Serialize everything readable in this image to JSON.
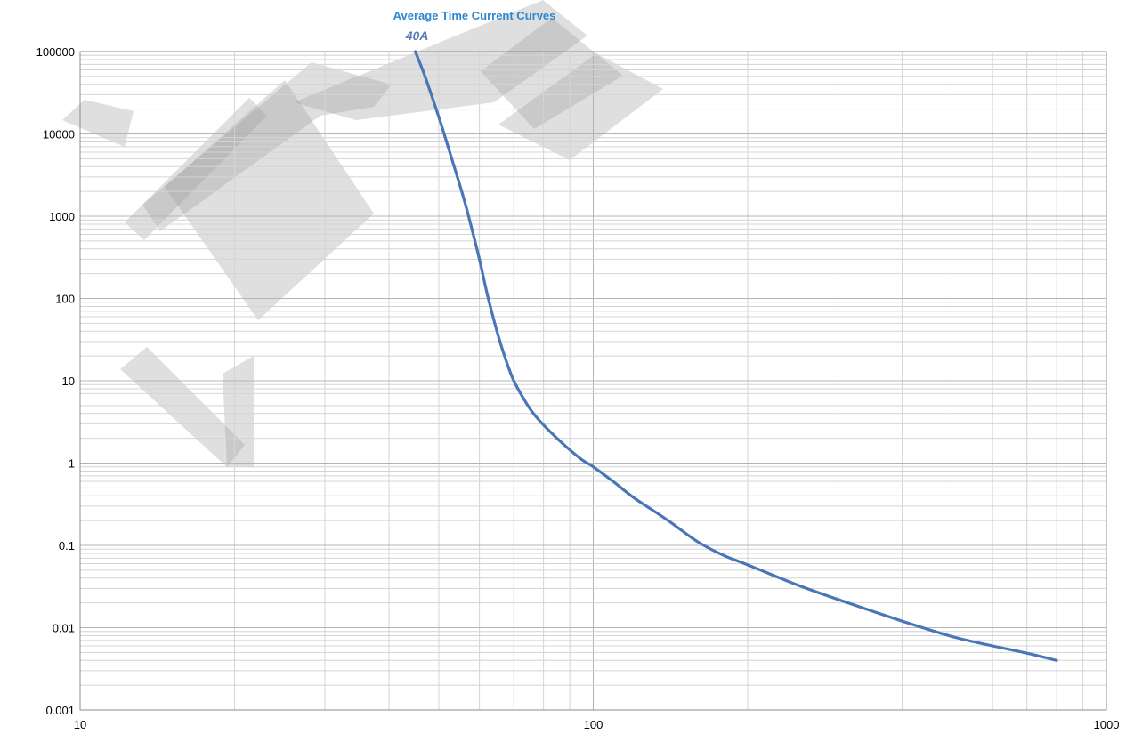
{
  "chart_data": {
    "type": "line",
    "title": "Average Time Current Curves",
    "xlabel": "",
    "ylabel": "",
    "x_scale": "log",
    "y_scale": "log",
    "xlim": [
      10,
      1000
    ],
    "ylim": [
      0.001,
      100000
    ],
    "x_tick_labels": [
      "10",
      "100",
      "1000"
    ],
    "y_tick_labels": [
      "100000",
      "10000",
      "1000",
      "100",
      "10",
      "1",
      "0.1",
      "0.01",
      "0.001"
    ],
    "grid": true,
    "series": [
      {
        "name": "40A",
        "color": "#4a76b8",
        "x": [
          45,
          47,
          50,
          53,
          56,
          58,
          60,
          62,
          64,
          66,
          68,
          70,
          73,
          76,
          80,
          85,
          90,
          95,
          100,
          110,
          120,
          140,
          160,
          180,
          200,
          250,
          300,
          400,
          500,
          600,
          700,
          800
        ],
        "y": [
          100000,
          50000,
          16000,
          5000,
          1600,
          700,
          300,
          120,
          55,
          28,
          16,
          10,
          6.2,
          4.2,
          2.9,
          2.0,
          1.45,
          1.1,
          0.9,
          0.58,
          0.38,
          0.2,
          0.11,
          0.075,
          0.058,
          0.033,
          0.022,
          0.012,
          0.0078,
          0.006,
          0.0049,
          0.004
        ]
      }
    ]
  },
  "colors": {
    "title": "#2e86d0",
    "series_label": "#5b7fb5",
    "grid_major": "#b4b4b4",
    "grid_minor": "#d4d4d4",
    "watermark": "#9a9a9a"
  },
  "watermark": "通",
  "watermark_paths": [
    "M 70 135 L 95 112 L 150 125 L 140 165 Z",
    "M 140 250 L 280 110 L 300 130 L 162 270 Z",
    "M 160 230 L 350 70 L 440 95 L 420 120 L 360 130 L 180 260 Z",
    "M 135 415 L 165 390 L 275 500 L 255 525 Z",
    "M 250 420 L 285 400 L 285 525 L 255 525 Z",
    "M 185 210 L 320 90 L 420 240 L 290 360 Z",
    "M 330 115 L 610 0 L 660 40 L 555 115 L 400 135 Z",
    "M 540 80 L 620 20 L 700 85 L 600 145 Z",
    "M 560 140 L 670 60 L 745 100 L 640 180 Z"
  ]
}
